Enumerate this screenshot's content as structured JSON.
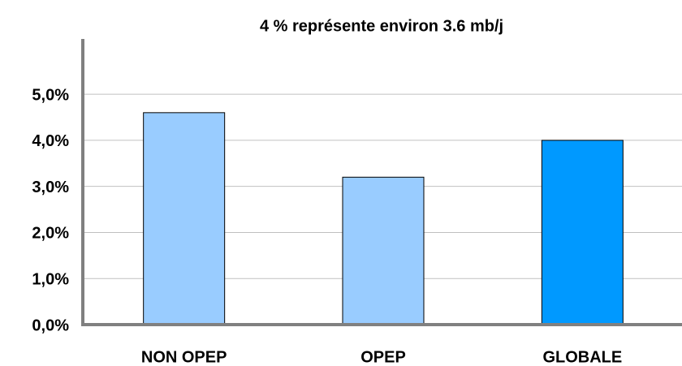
{
  "chart_data": {
    "type": "bar",
    "title": "4 %  représente environ 3.6 mb/j",
    "categories": [
      "NON OPEP",
      "OPEP",
      "GLOBALE"
    ],
    "values": [
      4.6,
      3.2,
      4.0
    ],
    "colors": [
      "#99ccff",
      "#99ccff",
      "#0099ff"
    ],
    "ylim": [
      0,
      6.2
    ],
    "yticks": [
      {
        "value": 0,
        "label": "0,0%"
      },
      {
        "value": 1,
        "label": "1,0%"
      },
      {
        "value": 2,
        "label": "2,0%"
      },
      {
        "value": 3,
        "label": "3,0%"
      },
      {
        "value": 4,
        "label": "4,0%"
      },
      {
        "value": 5,
        "label": "5,0%"
      }
    ],
    "grid": true
  }
}
